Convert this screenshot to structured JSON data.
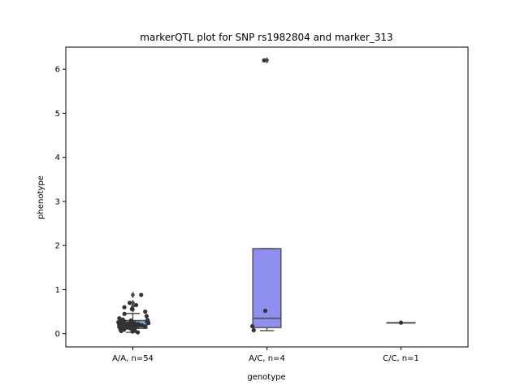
{
  "chart_data": {
    "type": "box",
    "title": "markerQTL plot for SNP rs1982804 and marker_313",
    "xlabel": "genotype",
    "ylabel": "phenotype",
    "categories": [
      "A/A, n=54",
      "A/C, n=4",
      "C/C, n=1"
    ],
    "ylim": [
      -0.3,
      6.5
    ],
    "yticks": [
      0,
      1,
      2,
      3,
      4,
      5,
      6
    ],
    "grid": false,
    "box_colors": [
      "#7da7d9",
      "#8f8ff0",
      "#8f8ff0"
    ],
    "boxes": [
      {
        "q1": 0.12,
        "median": 0.2,
        "q3": 0.3,
        "whisker_low": 0.03,
        "whisker_high": 0.46,
        "outliers": [
          0.55,
          0.62,
          0.7,
          0.88
        ]
      },
      {
        "q1": 0.14,
        "median": 0.35,
        "q3": 1.93,
        "whisker_low": 0.07,
        "whisker_high": 1.93,
        "outliers": [
          6.2
        ]
      },
      {
        "q1": 0.25,
        "median": 0.25,
        "q3": 0.25,
        "whisker_low": 0.25,
        "whisker_high": 0.25,
        "outliers": []
      }
    ],
    "points": [
      [
        0.05,
        0.08,
        0.1,
        0.12,
        0.13,
        0.14,
        0.15,
        0.16,
        0.17,
        0.18,
        0.18,
        0.19,
        0.2,
        0.2,
        0.21,
        0.22,
        0.22,
        0.23,
        0.24,
        0.25,
        0.25,
        0.26,
        0.27,
        0.28,
        0.29,
        0.3,
        0.31,
        0.32,
        0.12,
        0.15,
        0.18,
        0.2,
        0.22,
        0.24,
        0.26,
        0.28,
        0.1,
        0.14,
        0.16,
        0.19,
        0.21,
        0.23,
        0.35,
        0.4,
        0.45,
        0.5,
        0.56,
        0.6,
        0.65,
        0.7,
        0.88,
        0.03,
        0.06,
        0.09
      ],
      [
        0.52,
        0.08,
        0.17,
        6.2
      ],
      [
        0.25
      ]
    ]
  }
}
